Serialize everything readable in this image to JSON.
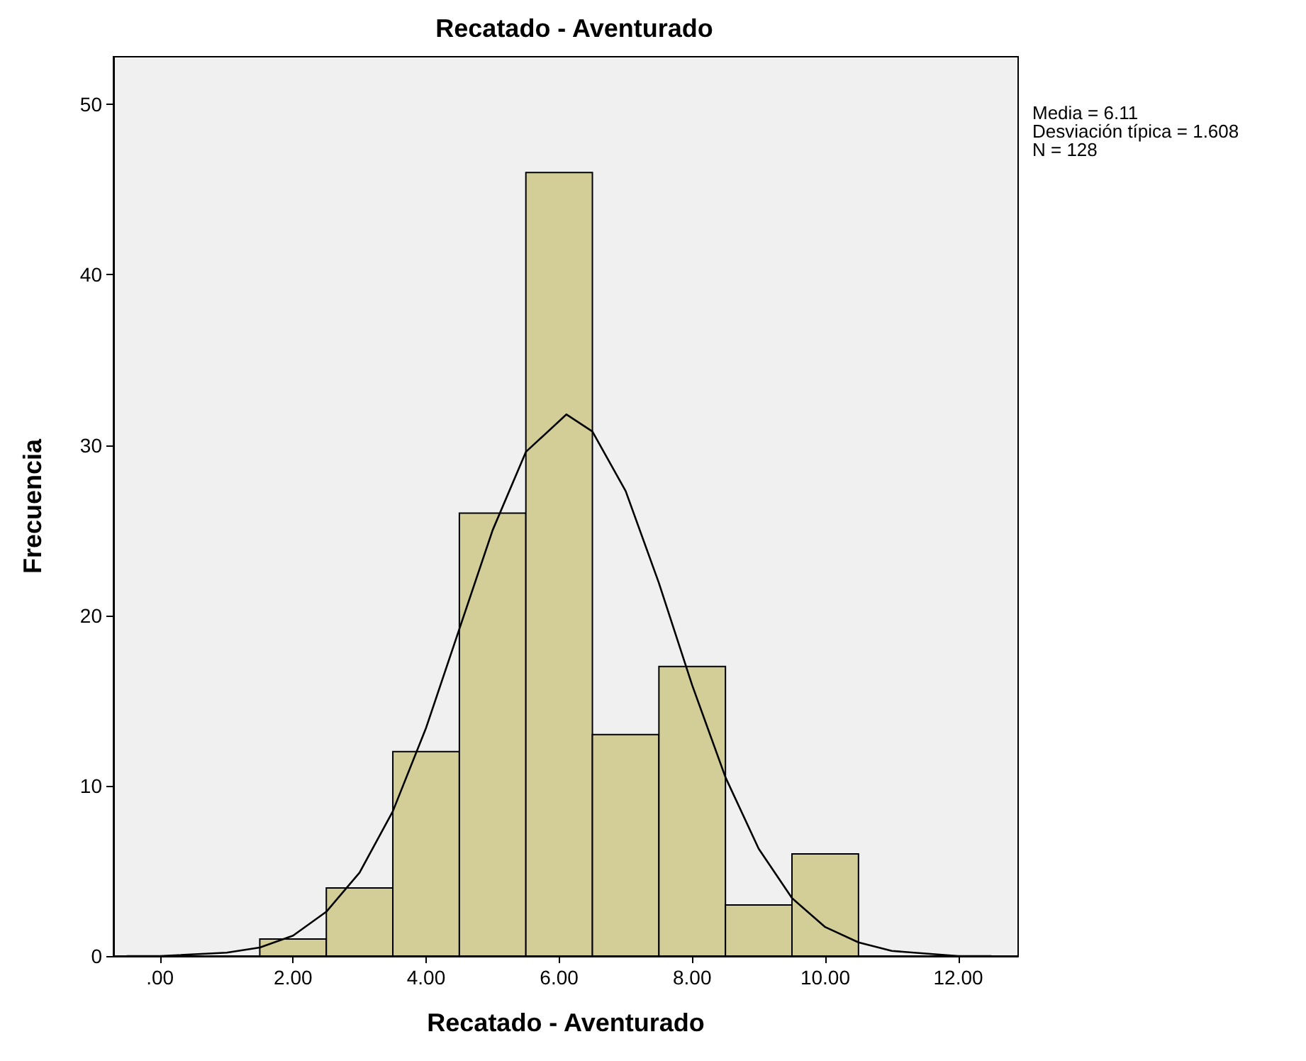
{
  "chart_data": {
    "type": "histogram",
    "title": "Recatado - Aventurado",
    "xlabel": "Recatado - Aventurado",
    "ylabel": "Frecuencia",
    "bins": [
      1.5,
      2.5,
      3.5,
      4.5,
      5.5,
      6.5,
      7.5,
      8.5,
      9.5,
      10.5
    ],
    "values": [
      1,
      4,
      12,
      26,
      46,
      13,
      17,
      3,
      6
    ],
    "color": "#d3ce97",
    "series": [
      {
        "type": "line",
        "color": "#000000",
        "x": [
          -0.5,
          0,
          1,
          1.5,
          2,
          2.5,
          3,
          3.5,
          4,
          4.5,
          5,
          5.5,
          6.11,
          6.5,
          7,
          7.5,
          8,
          8.5,
          9,
          9.5,
          10,
          10.5,
          11,
          12,
          12.5
        ],
        "values": [
          0,
          0,
          0.2,
          0.5,
          1.2,
          2.6,
          4.9,
          8.5,
          13.4,
          19.2,
          25.0,
          29.6,
          31.8,
          30.8,
          27.3,
          21.9,
          15.9,
          10.5,
          6.3,
          3.4,
          1.7,
          0.8,
          0.3,
          0,
          0
        ]
      }
    ],
    "marker": "none",
    "line_style": "solid",
    "grid": false,
    "xlim": [
      -0.7,
      12.9
    ],
    "xticks": [
      {
        "value": 0,
        "label": ".00"
      },
      {
        "value": 2,
        "label": "2.00"
      },
      {
        "value": 4,
        "label": "4.00"
      },
      {
        "value": 6,
        "label": "6.00"
      },
      {
        "value": 8,
        "label": "8.00"
      },
      {
        "value": 10,
        "label": "10.00"
      },
      {
        "value": 12,
        "label": "12.00"
      }
    ],
    "ylim": [
      0,
      52.8
    ],
    "yticks": [
      0,
      10,
      20,
      30,
      40,
      50
    ],
    "annotations": [
      "Media = 6.11",
      "Desviación típica = 1.608",
      "N = 128"
    ]
  }
}
